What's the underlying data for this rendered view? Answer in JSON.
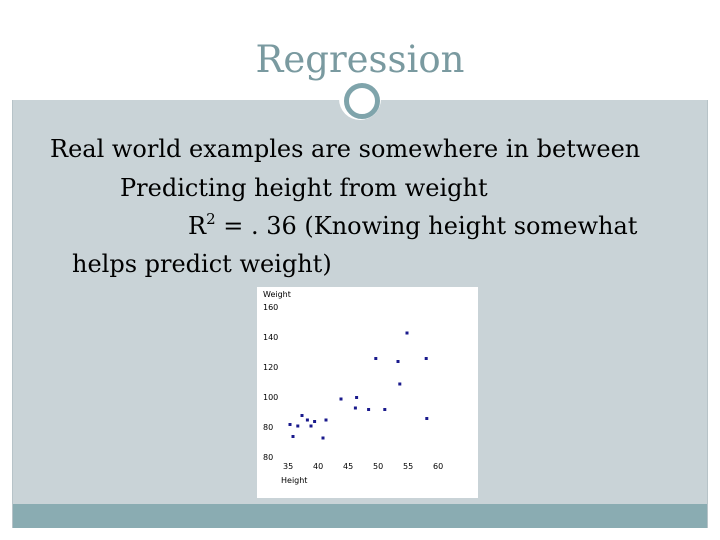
{
  "slide": {
    "title": "Regression",
    "line1": "Real world examples are somewhere in between",
    "line2": "Predicting height from weight",
    "line3_prefix": "R",
    "line3_sup": "2",
    "line3_rest": " = . 36 (Knowing height somewhat",
    "line4": "helps predict weight)"
  },
  "colors": {
    "title": "#7a9aa0",
    "content_bg": "#c9d3d7",
    "footer": "#8aacb2",
    "point": "#1a1a8c"
  },
  "chart_data": {
    "type": "scatter",
    "title": "",
    "xlabel": "Height",
    "ylabel": "Weight",
    "xlim": [
      35,
      60
    ],
    "ylim": [
      80,
      160
    ],
    "x_ticks": [
      "35",
      "40",
      "45",
      "50",
      "55",
      "60"
    ],
    "y_ticks": [
      "160",
      "140",
      "120",
      "100",
      "80",
      "80"
    ],
    "points": [
      {
        "x": 35.5,
        "y": 89
      },
      {
        "x": 36,
        "y": 81
      },
      {
        "x": 36.8,
        "y": 88
      },
      {
        "x": 37.5,
        "y": 95
      },
      {
        "x": 38.4,
        "y": 92
      },
      {
        "x": 39,
        "y": 88
      },
      {
        "x": 39.6,
        "y": 91
      },
      {
        "x": 41,
        "y": 80
      },
      {
        "x": 41.5,
        "y": 92
      },
      {
        "x": 44,
        "y": 106
      },
      {
        "x": 46.4,
        "y": 100
      },
      {
        "x": 46.6,
        "y": 107
      },
      {
        "x": 48.6,
        "y": 99
      },
      {
        "x": 49.8,
        "y": 133
      },
      {
        "x": 51.3,
        "y": 99
      },
      {
        "x": 53.5,
        "y": 131
      },
      {
        "x": 53.8,
        "y": 116
      },
      {
        "x": 55,
        "y": 150
      },
      {
        "x": 58.2,
        "y": 133
      },
      {
        "x": 58.3,
        "y": 93
      }
    ]
  }
}
